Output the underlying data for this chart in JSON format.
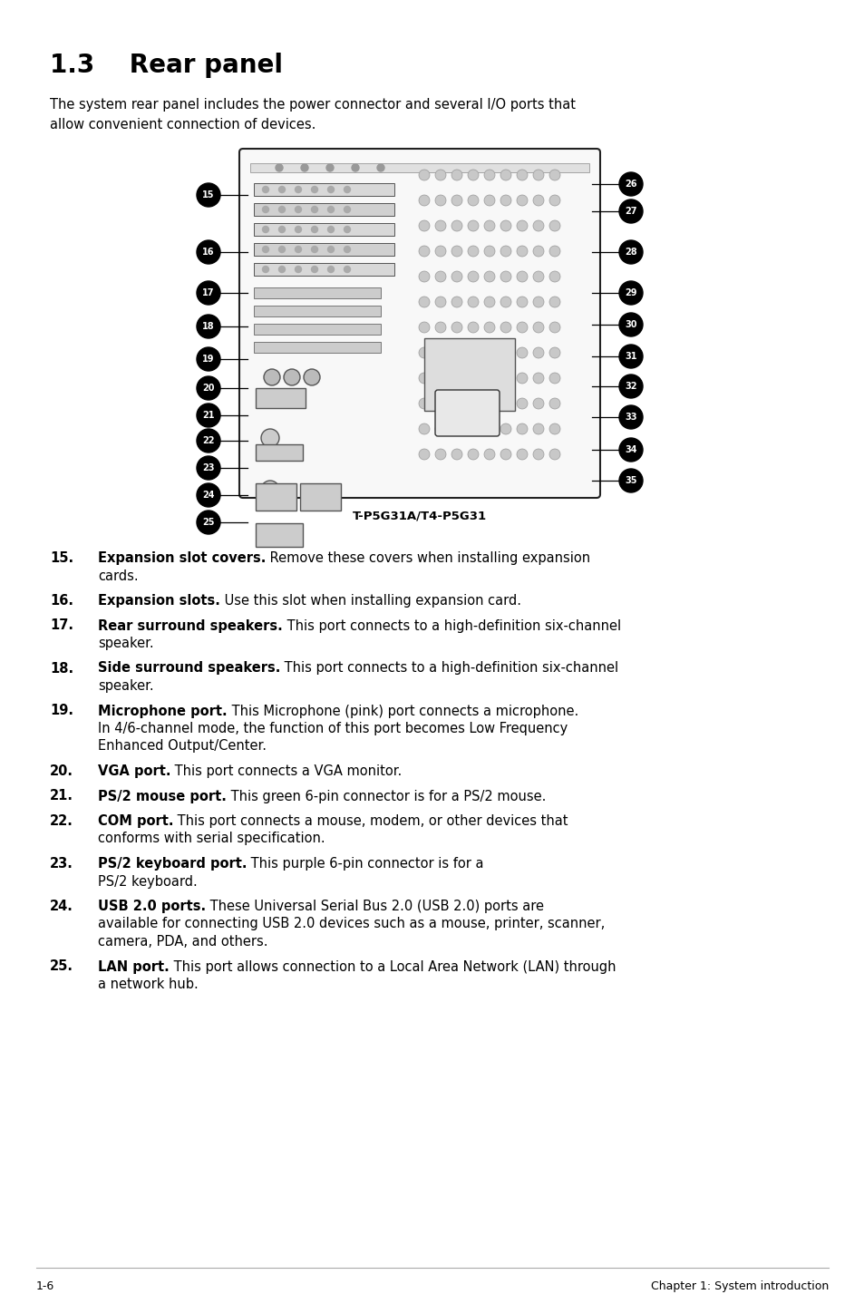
{
  "title": "1.3    Rear panel",
  "intro_text": "The system rear panel includes the power connector and several I/O ports that\nallow convenient connection of devices.",
  "diagram_caption": "T-P5G31A/T4-P5G31",
  "items": [
    {
      "num": "15.",
      "bold": "Expansion slot covers.",
      "normal": " Remove these covers when installing expansion\n    cards."
    },
    {
      "num": "16.",
      "bold": "Expansion slots.",
      "normal": " Use this slot when installing expansion card."
    },
    {
      "num": "17.",
      "bold": "Rear surround speakers.",
      "normal": " This port connects to a high-definition six-channel\n    speaker."
    },
    {
      "num": "18.",
      "bold": "Side surround speakers.",
      "normal": " This port connects to a high-definition six-channel\n    speaker."
    },
    {
      "num": "19.",
      "bold": "Microphone port.",
      "normal": " This Microphone (pink) port connects a microphone.\n    In 4/6-channel mode, the function of this port becomes Low Frequency\n    Enhanced Output/Center."
    },
    {
      "num": "20.",
      "bold": "VGA port.",
      "normal": " This port connects a VGA monitor."
    },
    {
      "num": "21.",
      "bold": "PS/2 mouse port.",
      "normal": " This green 6-pin connector is for a PS/2 mouse."
    },
    {
      "num": "22.",
      "bold": "COM port.",
      "normal": " This port connects a mouse, modem, or other devices that\n    conforms with serial specification."
    },
    {
      "num": "23.",
      "bold": "PS/2 keyboard port.",
      "normal": " This purple 6-pin connector is for a\n    PS/2 keyboard."
    },
    {
      "num": "24.",
      "bold": "USB 2.0 ports.",
      "normal": " These Universal Serial Bus 2.0 (USB 2.0) ports are\n    available for connecting USB 2.0 devices such as a mouse, printer, scanner,\n    camera, PDA, and others."
    },
    {
      "num": "25.",
      "bold": "LAN port.",
      "normal": " This port allows connection to a Local Area Network (LAN) through\n    a network hub."
    }
  ],
  "footer_left": "1-6",
  "footer_right": "Chapter 1: System introduction",
  "bg_color": "#ffffff",
  "text_color": "#000000"
}
